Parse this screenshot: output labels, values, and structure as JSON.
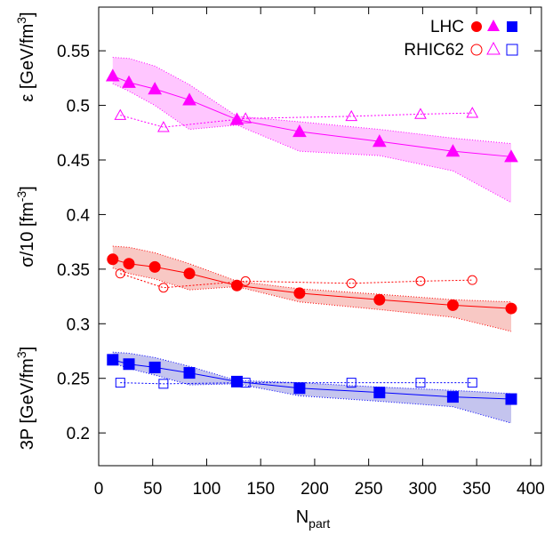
{
  "chart_data": {
    "type": "line",
    "xlabel": "N",
    "xlabel_sub": "part",
    "xlim": [
      0,
      410
    ],
    "ylim": [
      0.17,
      0.59
    ],
    "x_ticks": [
      0,
      50,
      100,
      150,
      200,
      250,
      300,
      350,
      400
    ],
    "y_ticks": [
      0.2,
      0.25,
      0.3,
      0.35,
      0.4,
      0.45,
      0.5,
      0.55
    ],
    "y_tick_labels": [
      "0.2",
      "0.25",
      "0.3",
      "0.35",
      "0.4",
      "0.45",
      "0.5",
      "0.55"
    ],
    "ylabels": [
      {
        "text": "ε [GeV/fm",
        "sup": "3",
        "tail": "]"
      },
      {
        "text": "σ/10 [fm",
        "sup": "-3",
        "tail": "]"
      },
      {
        "text": "3P [GeV/fm",
        "sup": "3",
        "tail": "]"
      }
    ],
    "legend": {
      "placement": "top-right",
      "entries": [
        {
          "label": "LHC",
          "filled": true
        },
        {
          "label": "RHIC62",
          "filled": false
        }
      ]
    },
    "series": [
      {
        "quantity": "epsilon",
        "dataset": "LHC",
        "marker": "triangle",
        "filled": true,
        "color": "#ff00ff",
        "band_fill": "#ffc6ff",
        "x": [
          13,
          28,
          52,
          84,
          128,
          186,
          260,
          328,
          382
        ],
        "y": [
          0.527,
          0.521,
          0.515,
          0.505,
          0.487,
          0.476,
          0.467,
          0.458,
          0.453
        ],
        "band_upper": [
          0.544,
          0.543,
          0.536,
          0.519,
          0.49,
          0.485,
          0.478,
          0.47,
          0.465
        ],
        "band_lower": [
          0.52,
          0.513,
          0.5,
          0.478,
          0.482,
          0.458,
          0.454,
          0.44,
          0.411
        ]
      },
      {
        "quantity": "epsilon",
        "dataset": "RHIC62",
        "marker": "triangle",
        "filled": false,
        "color": "#ff00ff",
        "x": [
          20,
          60,
          136,
          234,
          298,
          346
        ],
        "y": [
          0.491,
          0.48,
          0.488,
          0.49,
          0.492,
          0.493
        ]
      },
      {
        "quantity": "sigma",
        "dataset": "LHC",
        "marker": "circle",
        "filled": true,
        "color": "#ff0000",
        "band_fill": "#f8c8c4",
        "x": [
          13,
          28,
          52,
          84,
          128,
          186,
          260,
          328,
          382
        ],
        "y": [
          0.359,
          0.355,
          0.352,
          0.346,
          0.335,
          0.328,
          0.322,
          0.317,
          0.314
        ],
        "band_upper": [
          0.371,
          0.37,
          0.365,
          0.355,
          0.339,
          0.332,
          0.327,
          0.322,
          0.32
        ],
        "band_lower": [
          0.351,
          0.346,
          0.341,
          0.331,
          0.334,
          0.32,
          0.313,
          0.306,
          0.293
        ]
      },
      {
        "quantity": "sigma",
        "dataset": "RHIC62",
        "marker": "circle",
        "filled": false,
        "color": "#ff0000",
        "x": [
          20,
          60,
          136,
          234,
          298,
          346
        ],
        "y": [
          0.346,
          0.333,
          0.339,
          0.337,
          0.339,
          0.34
        ]
      },
      {
        "quantity": "pressure",
        "dataset": "LHC",
        "marker": "square",
        "filled": true,
        "color": "#0000ff",
        "band_fill": "#c4c4ee",
        "x": [
          13,
          28,
          52,
          84,
          128,
          186,
          260,
          328,
          382
        ],
        "y": [
          0.267,
          0.263,
          0.26,
          0.255,
          0.247,
          0.241,
          0.237,
          0.233,
          0.231
        ],
        "band_upper": [
          0.274,
          0.273,
          0.269,
          0.261,
          0.248,
          0.246,
          0.242,
          0.239,
          0.236
        ],
        "band_lower": [
          0.264,
          0.259,
          0.253,
          0.244,
          0.245,
          0.234,
          0.229,
          0.224,
          0.209
        ]
      },
      {
        "quantity": "pressure",
        "dataset": "RHIC62",
        "marker": "square",
        "filled": false,
        "color": "#0000ff",
        "x": [
          20,
          60,
          136,
          234,
          298,
          346
        ],
        "y": [
          0.246,
          0.245,
          0.246,
          0.246,
          0.246,
          0.246
        ]
      }
    ]
  }
}
